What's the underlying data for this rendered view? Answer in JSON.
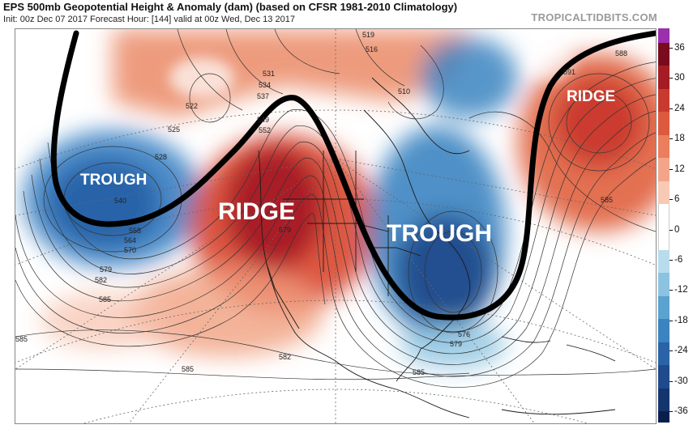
{
  "header": {
    "title": "EPS 500mb Geopotential Height & Anomaly (dam) (based on CFSR 1981-2010 Climatology)",
    "subtitle": "Init: 00z Dec 07 2017   Forecast Hour: [144]   valid at 00z Wed, Dec 13 2017",
    "brand": "TROPICALTIDBITS.COM"
  },
  "features": {
    "trough_west": "TROUGH",
    "ridge_west": "RIDGE",
    "trough_east": "TROUGH",
    "ridge_east": "RIDGE"
  },
  "contour_labels": [
    {
      "id": "c522",
      "text": "522"
    },
    {
      "id": "c525",
      "text": "525"
    },
    {
      "id": "c528",
      "text": "528"
    },
    {
      "id": "c531",
      "text": "531"
    },
    {
      "id": "c534",
      "text": "534"
    },
    {
      "id": "c537",
      "text": "537"
    },
    {
      "id": "c540",
      "text": "540"
    },
    {
      "id": "c549",
      "text": "549"
    },
    {
      "id": "c552",
      "text": "552"
    },
    {
      "id": "c558",
      "text": "558"
    },
    {
      "id": "c564",
      "text": "564"
    },
    {
      "id": "c570",
      "text": "570"
    },
    {
      "id": "c576",
      "text": "576"
    },
    {
      "id": "c579",
      "text": "579"
    },
    {
      "id": "c579b",
      "text": "579"
    },
    {
      "id": "c579c",
      "text": "579"
    },
    {
      "id": "c582",
      "text": "582"
    },
    {
      "id": "c582b",
      "text": "582"
    },
    {
      "id": "c585",
      "text": "585"
    },
    {
      "id": "c585b",
      "text": "585"
    },
    {
      "id": "c585c",
      "text": "585"
    },
    {
      "id": "c585d",
      "text": "585"
    },
    {
      "id": "c585e",
      "text": "585"
    },
    {
      "id": "c588",
      "text": "588"
    },
    {
      "id": "c591",
      "text": "591"
    },
    {
      "id": "c516",
      "text": "516"
    },
    {
      "id": "c519",
      "text": "519"
    },
    {
      "id": "c510",
      "text": "510"
    }
  ],
  "colorbar": {
    "units": "dam",
    "ticks": [
      36,
      30,
      24,
      18,
      12,
      6,
      0,
      -6,
      -12,
      -18,
      -24,
      -30,
      -36
    ],
    "colors": [
      "#7a0a1e",
      "#a61c24",
      "#c93a2e",
      "#dd5a3e",
      "#eb7e5c",
      "#f3a58a",
      "#f8c9b5",
      "#ffffff",
      "#ffffff",
      "#b9dcec",
      "#8cc3e0",
      "#5aa3d1",
      "#3a84c1",
      "#2a63a8",
      "#1f4a8c",
      "#14346d"
    ],
    "top_color": "#9b2fae",
    "bottom_color": "#0a1e4c"
  },
  "colors": {
    "trough_line": "#000000",
    "warm_anomaly": "#d9452e",
    "cold_anomaly": "#2b6fb5"
  }
}
